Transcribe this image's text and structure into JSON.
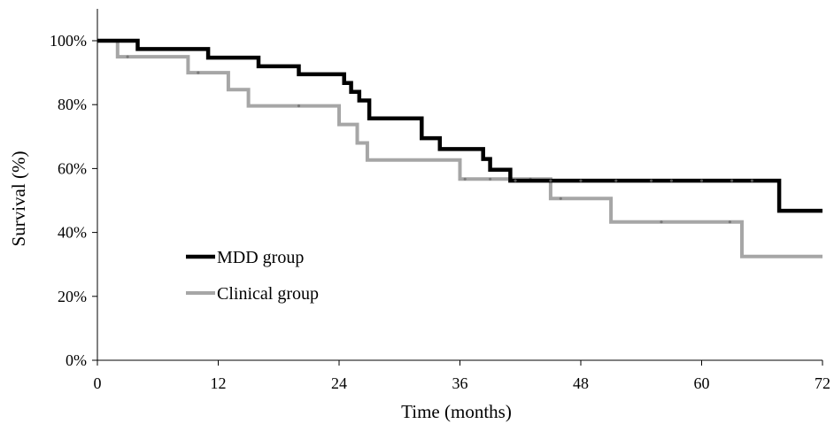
{
  "chart_data": {
    "type": "line",
    "title": "",
    "xlabel": "Time (months)",
    "ylabel": "Survival (%)",
    "xlim": [
      0,
      72
    ],
    "ylim": [
      0,
      100
    ],
    "x_ticks": [
      0,
      12,
      24,
      36,
      48,
      60,
      72
    ],
    "y_ticks": [
      0,
      20,
      40,
      60,
      80,
      100
    ],
    "y_tick_labels": [
      "0%",
      "20%",
      "40%",
      "60%",
      "80%",
      "100%"
    ],
    "grid": false,
    "legend_position": "left-lower",
    "series": [
      {
        "name": "MDD group",
        "color": "#000000",
        "step_points": [
          [
            0,
            100
          ],
          [
            4,
            97.4
          ],
          [
            11,
            94.7
          ],
          [
            16,
            92
          ],
          [
            20,
            89.5
          ],
          [
            24.5,
            86.8
          ],
          [
            25.2,
            84
          ],
          [
            26,
            81.3
          ],
          [
            27,
            75.7
          ],
          [
            32.2,
            69.5
          ],
          [
            34,
            66.1
          ],
          [
            38.3,
            63
          ],
          [
            39,
            59.6
          ],
          [
            41,
            56.2
          ],
          [
            67.7,
            56.2
          ],
          [
            67.7,
            46.8
          ],
          [
            72,
            46.8
          ]
        ],
        "censor_marks": [
          [
            41.5,
            56.2
          ],
          [
            45,
            56.2
          ],
          [
            48,
            56.2
          ],
          [
            51.5,
            56.2
          ],
          [
            55,
            56.2
          ],
          [
            57,
            56.2
          ],
          [
            60,
            56.2
          ],
          [
            63,
            56.2
          ],
          [
            65,
            56.2
          ]
        ]
      },
      {
        "name": "Clinical group",
        "color": "#a6a6a6",
        "step_points": [
          [
            0,
            100
          ],
          [
            2,
            95
          ],
          [
            9,
            90
          ],
          [
            13,
            84.7
          ],
          [
            15,
            79.6
          ],
          [
            24,
            73.8
          ],
          [
            25.8,
            68
          ],
          [
            26.8,
            62.7
          ],
          [
            36,
            56.7
          ],
          [
            45,
            50.6
          ],
          [
            51,
            43.3
          ],
          [
            64,
            32.5
          ],
          [
            72,
            32.5
          ]
        ],
        "censor_marks": [
          [
            3,
            95
          ],
          [
            10,
            90
          ],
          [
            20,
            79.6
          ],
          [
            36.5,
            56.7
          ],
          [
            39,
            56.7
          ],
          [
            43,
            56.7
          ],
          [
            46,
            50.6
          ],
          [
            56,
            43.3
          ],
          [
            62.8,
            43.3
          ]
        ]
      }
    ]
  }
}
